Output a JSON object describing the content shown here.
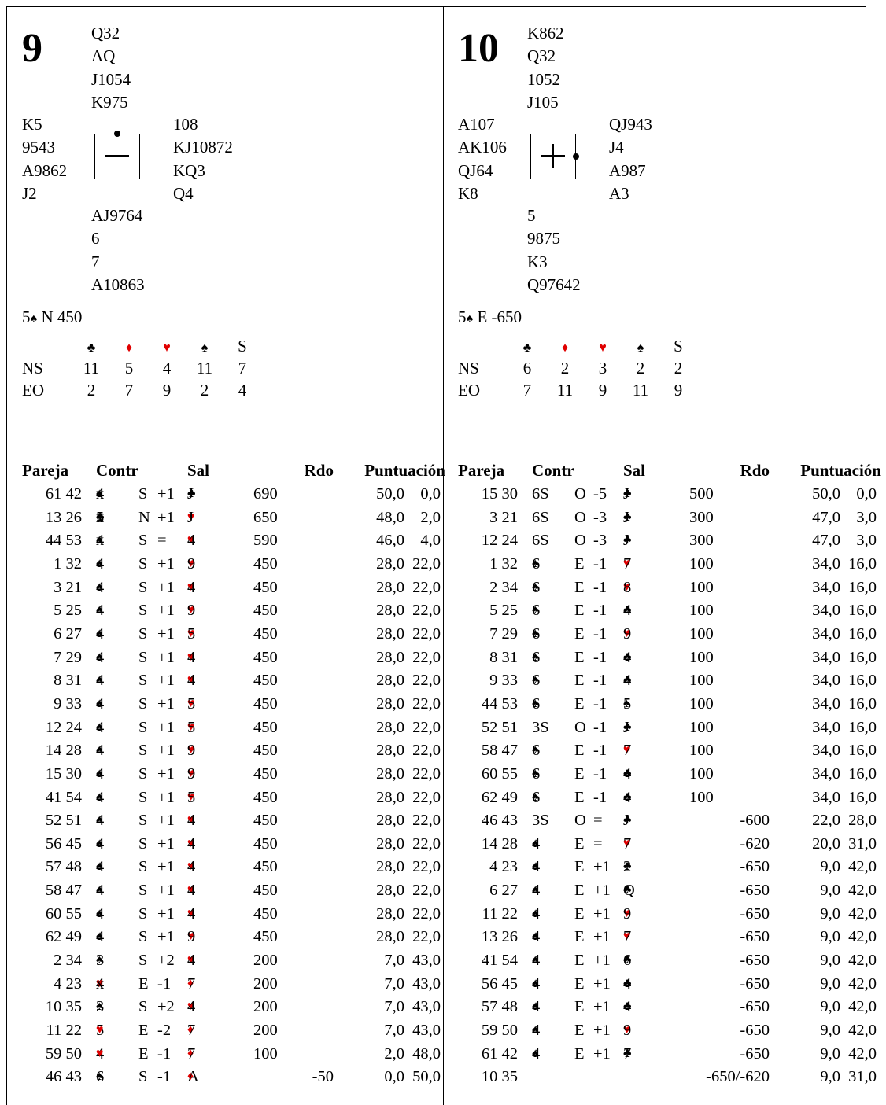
{
  "boards": [
    {
      "number": "9",
      "north": [
        "Q32",
        "AQ",
        "J1054",
        "K975"
      ],
      "west": [
        "K5",
        "9543",
        "A9862",
        "J2"
      ],
      "east": [
        "108",
        "KJ10872",
        "KQ3",
        "Q4"
      ],
      "south": [
        "AJ9764",
        "6",
        "7",
        "A10863"
      ],
      "compass_symbol": "—",
      "contract": {
        "level": "5",
        "suit": "♠",
        "rest": " N 450"
      },
      "dd": {
        "headers": [
          "♣",
          "♦",
          "♥",
          "♠",
          "S"
        ],
        "rows": [
          {
            "label": "NS",
            "values": [
              "11",
              "5",
              "4",
              "11",
              "7"
            ]
          },
          {
            "label": "EO",
            "values": [
              "2",
              "7",
              "9",
              "2",
              "4"
            ]
          }
        ]
      },
      "columns": {
        "pair": "Pareja",
        "contract": "Contr",
        "lead": "Sal",
        "result": "Rdo",
        "score": "Puntuación"
      },
      "results": [
        {
          "pair": "61 42",
          "level": "4",
          "suit": "♠",
          "dbl": "x",
          "decl": "S",
          "tricks": "+1",
          "lead_suit": "♣",
          "lead_card": "J",
          "rdo": "690",
          "rdo_ew": "",
          "ns": "50,0",
          "ew": "0,0"
        },
        {
          "pair": "13 26",
          "level": "5",
          "suit": "♣",
          "dbl": "x",
          "decl": "N",
          "tricks": "+1",
          "lead_suit": "♥",
          "lead_card": "J",
          "rdo": "650",
          "rdo_ew": "",
          "ns": "48,0",
          "ew": "2,0"
        },
        {
          "pair": "44 53",
          "level": "4",
          "suit": "♠",
          "dbl": "x",
          "decl": "S",
          "tricks": "=",
          "lead_suit": "♥",
          "lead_card": "4",
          "rdo": "590",
          "rdo_ew": "",
          "ns": "46,0",
          "ew": "4,0"
        },
        {
          "pair": "1 32",
          "level": "4",
          "suit": "♠",
          "dbl": "",
          "decl": "S",
          "tricks": "+1",
          "lead_suit": "♥",
          "lead_card": "9",
          "rdo": "450",
          "rdo_ew": "",
          "ns": "28,0",
          "ew": "22,0"
        },
        {
          "pair": "3 21",
          "level": "4",
          "suit": "♠",
          "dbl": "",
          "decl": "S",
          "tricks": "+1",
          "lead_suit": "♥",
          "lead_card": "4",
          "rdo": "450",
          "rdo_ew": "",
          "ns": "28,0",
          "ew": "22,0"
        },
        {
          "pair": "5 25",
          "level": "4",
          "suit": "♠",
          "dbl": "",
          "decl": "S",
          "tricks": "+1",
          "lead_suit": "♥",
          "lead_card": "9",
          "rdo": "450",
          "rdo_ew": "",
          "ns": "28,0",
          "ew": "22,0"
        },
        {
          "pair": "6 27",
          "level": "4",
          "suit": "♠",
          "dbl": "",
          "decl": "S",
          "tricks": "+1",
          "lead_suit": "♥",
          "lead_card": "5",
          "rdo": "450",
          "rdo_ew": "",
          "ns": "28,0",
          "ew": "22,0"
        },
        {
          "pair": "7 29",
          "level": "4",
          "suit": "♠",
          "dbl": "",
          "decl": "S",
          "tricks": "+1",
          "lead_suit": "♥",
          "lead_card": "4",
          "rdo": "450",
          "rdo_ew": "",
          "ns": "28,0",
          "ew": "22,0"
        },
        {
          "pair": "8 31",
          "level": "4",
          "suit": "♠",
          "dbl": "",
          "decl": "S",
          "tricks": "+1",
          "lead_suit": "♥",
          "lead_card": "4",
          "rdo": "450",
          "rdo_ew": "",
          "ns": "28,0",
          "ew": "22,0"
        },
        {
          "pair": "9 33",
          "level": "4",
          "suit": "♠",
          "dbl": "",
          "decl": "S",
          "tricks": "+1",
          "lead_suit": "♥",
          "lead_card": "5",
          "rdo": "450",
          "rdo_ew": "",
          "ns": "28,0",
          "ew": "22,0"
        },
        {
          "pair": "12 24",
          "level": "4",
          "suit": "♠",
          "dbl": "",
          "decl": "S",
          "tricks": "+1",
          "lead_suit": "♥",
          "lead_card": "5",
          "rdo": "450",
          "rdo_ew": "",
          "ns": "28,0",
          "ew": "22,0"
        },
        {
          "pair": "14 28",
          "level": "4",
          "suit": "♠",
          "dbl": "",
          "decl": "S",
          "tricks": "+1",
          "lead_suit": "♥",
          "lead_card": "9",
          "rdo": "450",
          "rdo_ew": "",
          "ns": "28,0",
          "ew": "22,0"
        },
        {
          "pair": "15 30",
          "level": "4",
          "suit": "♠",
          "dbl": "",
          "decl": "S",
          "tricks": "+1",
          "lead_suit": "♥",
          "lead_card": "9",
          "rdo": "450",
          "rdo_ew": "",
          "ns": "28,0",
          "ew": "22,0"
        },
        {
          "pair": "41 54",
          "level": "4",
          "suit": "♠",
          "dbl": "",
          "decl": "S",
          "tricks": "+1",
          "lead_suit": "♥",
          "lead_card": "5",
          "rdo": "450",
          "rdo_ew": "",
          "ns": "28,0",
          "ew": "22,0"
        },
        {
          "pair": "52 51",
          "level": "4",
          "suit": "♠",
          "dbl": "",
          "decl": "S",
          "tricks": "+1",
          "lead_suit": "♥",
          "lead_card": "4",
          "rdo": "450",
          "rdo_ew": "",
          "ns": "28,0",
          "ew": "22,0"
        },
        {
          "pair": "56 45",
          "level": "4",
          "suit": "♠",
          "dbl": "",
          "decl": "S",
          "tricks": "+1",
          "lead_suit": "♥",
          "lead_card": "4",
          "rdo": "450",
          "rdo_ew": "",
          "ns": "28,0",
          "ew": "22,0"
        },
        {
          "pair": "57 48",
          "level": "4",
          "suit": "♠",
          "dbl": "",
          "decl": "S",
          "tricks": "+1",
          "lead_suit": "♥",
          "lead_card": "4",
          "rdo": "450",
          "rdo_ew": "",
          "ns": "28,0",
          "ew": "22,0"
        },
        {
          "pair": "58 47",
          "level": "4",
          "suit": "♠",
          "dbl": "",
          "decl": "S",
          "tricks": "+1",
          "lead_suit": "♥",
          "lead_card": "4",
          "rdo": "450",
          "rdo_ew": "",
          "ns": "28,0",
          "ew": "22,0"
        },
        {
          "pair": "60 55",
          "level": "4",
          "suit": "♠",
          "dbl": "",
          "decl": "S",
          "tricks": "+1",
          "lead_suit": "♥",
          "lead_card": "4",
          "rdo": "450",
          "rdo_ew": "",
          "ns": "28,0",
          "ew": "22,0"
        },
        {
          "pair": "62 49",
          "level": "4",
          "suit": "♠",
          "dbl": "",
          "decl": "S",
          "tricks": "+1",
          "lead_suit": "♥",
          "lead_card": "9",
          "rdo": "450",
          "rdo_ew": "",
          "ns": "28,0",
          "ew": "22,0"
        },
        {
          "pair": "2 34",
          "level": "3",
          "suit": "♠",
          "dbl": "",
          "decl": "S",
          "tricks": "+2",
          "lead_suit": "♥",
          "lead_card": "4",
          "rdo": "200",
          "rdo_ew": "",
          "ns": "7,0",
          "ew": "43,0"
        },
        {
          "pair": "4 23",
          "level": "4",
          "suit": "♥",
          "dbl": "x",
          "decl": "E",
          "tricks": "-1",
          "lead_suit": "♦",
          "lead_card": "7",
          "rdo": "200",
          "rdo_ew": "",
          "ns": "7,0",
          "ew": "43,0"
        },
        {
          "pair": "10 35",
          "level": "3",
          "suit": "♠",
          "dbl": "",
          "decl": "S",
          "tricks": "+2",
          "lead_suit": "♥",
          "lead_card": "4",
          "rdo": "200",
          "rdo_ew": "",
          "ns": "7,0",
          "ew": "43,0"
        },
        {
          "pair": "11 22",
          "level": "5",
          "suit": "♥",
          "dbl": "",
          "decl": "E",
          "tricks": "-2",
          "lead_suit": "♦",
          "lead_card": "7",
          "rdo": "200",
          "rdo_ew": "",
          "ns": "7,0",
          "ew": "43,0"
        },
        {
          "pair": "59 50",
          "level": "4",
          "suit": "♥",
          "dbl": "",
          "decl": "E",
          "tricks": "-1",
          "lead_suit": "♦",
          "lead_card": "7",
          "rdo": "100",
          "rdo_ew": "",
          "ns": "2,0",
          "ew": "48,0"
        },
        {
          "pair": "46 43",
          "level": "6",
          "suit": "♠",
          "dbl": "",
          "decl": "S",
          "tricks": "-1",
          "lead_suit": "♦",
          "lead_card": "A",
          "rdo": "",
          "rdo_ew": "-50",
          "ns": "0,0",
          "ew": "50,0"
        }
      ]
    },
    {
      "number": "10",
      "north": [
        "K862",
        "Q32",
        "1052",
        "J105"
      ],
      "west": [
        "A107",
        "AK106",
        "QJ64",
        "K8"
      ],
      "east": [
        "QJ943",
        "J4",
        "A987",
        "A3"
      ],
      "south": [
        "5",
        "9875",
        "K3",
        "Q97642"
      ],
      "compass_symbol": "+",
      "contract": {
        "level": "5",
        "suit": "♠",
        "rest": " E -650"
      },
      "dd": {
        "headers": [
          "♣",
          "♦",
          "♥",
          "♠",
          "S"
        ],
        "rows": [
          {
            "label": "NS",
            "values": [
              "6",
              "2",
              "3",
              "2",
              "2"
            ]
          },
          {
            "label": "EO",
            "values": [
              "7",
              "11",
              "9",
              "11",
              "9"
            ]
          }
        ]
      },
      "columns": {
        "pair": "Pareja",
        "contract": "Contr",
        "lead": "Sal",
        "result": "Rdo",
        "score": "Puntuación"
      },
      "results": [
        {
          "pair": "15 30",
          "level": "6S",
          "suit": "",
          "dbl": "",
          "decl": "O",
          "tricks": "-5",
          "lead_suit": "♣",
          "lead_card": "J",
          "rdo": "500",
          "rdo_ew": "",
          "ns": "50,0",
          "ew": "0,0"
        },
        {
          "pair": "3 21",
          "level": "6S",
          "suit": "",
          "dbl": "",
          "decl": "O",
          "tricks": "-3",
          "lead_suit": "♣",
          "lead_card": "J",
          "rdo": "300",
          "rdo_ew": "",
          "ns": "47,0",
          "ew": "3,0"
        },
        {
          "pair": "12 24",
          "level": "6S",
          "suit": "",
          "dbl": "",
          "decl": "O",
          "tricks": "-3",
          "lead_suit": "♣",
          "lead_card": "J",
          "rdo": "300",
          "rdo_ew": "",
          "ns": "47,0",
          "ew": "3,0"
        },
        {
          "pair": "1 32",
          "level": "6",
          "suit": "♠",
          "dbl": "",
          "decl": "E",
          "tricks": "-1",
          "lead_suit": "♥",
          "lead_card": "7",
          "rdo": "100",
          "rdo_ew": "",
          "ns": "34,0",
          "ew": "16,0"
        },
        {
          "pair": "2 34",
          "level": "6",
          "suit": "♠",
          "dbl": "",
          "decl": "E",
          "tricks": "-1",
          "lead_suit": "♥",
          "lead_card": "8",
          "rdo": "100",
          "rdo_ew": "",
          "ns": "34,0",
          "ew": "16,0"
        },
        {
          "pair": "5 25",
          "level": "6",
          "suit": "♠",
          "dbl": "",
          "decl": "E",
          "tricks": "-1",
          "lead_suit": "♣",
          "lead_card": "4",
          "rdo": "100",
          "rdo_ew": "",
          "ns": "34,0",
          "ew": "16,0"
        },
        {
          "pair": "7 29",
          "level": "6",
          "suit": "♠",
          "dbl": "",
          "decl": "E",
          "tricks": "-1",
          "lead_suit": "♥",
          "lead_card": "9",
          "rdo": "100",
          "rdo_ew": "",
          "ns": "34,0",
          "ew": "16,0"
        },
        {
          "pair": "8 31",
          "level": "6",
          "suit": "♠",
          "dbl": "",
          "decl": "E",
          "tricks": "-1",
          "lead_suit": "♣",
          "lead_card": "4",
          "rdo": "100",
          "rdo_ew": "",
          "ns": "34,0",
          "ew": "16,0"
        },
        {
          "pair": "9 33",
          "level": "6",
          "suit": "♠",
          "dbl": "",
          "decl": "E",
          "tricks": "-1",
          "lead_suit": "♣",
          "lead_card": "4",
          "rdo": "100",
          "rdo_ew": "",
          "ns": "34,0",
          "ew": "16,0"
        },
        {
          "pair": "44 53",
          "level": "6",
          "suit": "♠",
          "dbl": "",
          "decl": "E",
          "tricks": "-1",
          "lead_suit": "♠",
          "lead_card": "5",
          "rdo": "100",
          "rdo_ew": "",
          "ns": "34,0",
          "ew": "16,0"
        },
        {
          "pair": "52 51",
          "level": "3S",
          "suit": "",
          "dbl": "",
          "decl": "O",
          "tricks": "-1",
          "lead_suit": "♣",
          "lead_card": "J",
          "rdo": "100",
          "rdo_ew": "",
          "ns": "34,0",
          "ew": "16,0"
        },
        {
          "pair": "58 47",
          "level": "6",
          "suit": "♠",
          "dbl": "",
          "decl": "E",
          "tricks": "-1",
          "lead_suit": "♥",
          "lead_card": "7",
          "rdo": "100",
          "rdo_ew": "",
          "ns": "34,0",
          "ew": "16,0"
        },
        {
          "pair": "60 55",
          "level": "6",
          "suit": "♠",
          "dbl": "",
          "decl": "E",
          "tricks": "-1",
          "lead_suit": "♣",
          "lead_card": "4",
          "rdo": "100",
          "rdo_ew": "",
          "ns": "34,0",
          "ew": "16,0"
        },
        {
          "pair": "62 49",
          "level": "6",
          "suit": "♠",
          "dbl": "",
          "decl": "E",
          "tricks": "-1",
          "lead_suit": "♣",
          "lead_card": "4",
          "rdo": "100",
          "rdo_ew": "",
          "ns": "34,0",
          "ew": "16,0"
        },
        {
          "pair": "46 43",
          "level": "3S",
          "suit": "",
          "dbl": "",
          "decl": "O",
          "tricks": "=",
          "lead_suit": "♣",
          "lead_card": "J",
          "rdo": "",
          "rdo_ew": "-600",
          "ns": "22,0",
          "ew": "28,0"
        },
        {
          "pair": "14 28",
          "level": "4",
          "suit": "♠",
          "dbl": "",
          "decl": "E",
          "tricks": "=",
          "lead_suit": "♥",
          "lead_card": "7",
          "rdo": "",
          "rdo_ew": "-620",
          "ns": "20,0",
          "ew": "31,0"
        },
        {
          "pair": "4 23",
          "level": "4",
          "suit": "♠",
          "dbl": "",
          "decl": "E",
          "tricks": "+1",
          "lead_suit": "♣",
          "lead_card": "2",
          "rdo": "",
          "rdo_ew": "-650",
          "ns": "9,0",
          "ew": "42,0"
        },
        {
          "pair": "6 27",
          "level": "4",
          "suit": "♠",
          "dbl": "",
          "decl": "E",
          "tricks": "+1",
          "lead_suit": "♣",
          "lead_card": "Q",
          "rdo": "",
          "rdo_ew": "-650",
          "ns": "9,0",
          "ew": "42,0"
        },
        {
          "pair": "11 22",
          "level": "4",
          "suit": "♠",
          "dbl": "",
          "decl": "E",
          "tricks": "+1",
          "lead_suit": "♥",
          "lead_card": "9",
          "rdo": "",
          "rdo_ew": "-650",
          "ns": "9,0",
          "ew": "42,0"
        },
        {
          "pair": "13 26",
          "level": "4",
          "suit": "♠",
          "dbl": "",
          "decl": "E",
          "tricks": "+1",
          "lead_suit": "♥",
          "lead_card": "7",
          "rdo": "",
          "rdo_ew": "-650",
          "ns": "9,0",
          "ew": "42,0"
        },
        {
          "pair": "41 54",
          "level": "4",
          "suit": "♠",
          "dbl": "",
          "decl": "E",
          "tricks": "+1",
          "lead_suit": "♣",
          "lead_card": "6",
          "rdo": "",
          "rdo_ew": "-650",
          "ns": "9,0",
          "ew": "42,0"
        },
        {
          "pair": "56 45",
          "level": "4",
          "suit": "♠",
          "dbl": "",
          "decl": "E",
          "tricks": "+1",
          "lead_suit": "♣",
          "lead_card": "4",
          "rdo": "",
          "rdo_ew": "-650",
          "ns": "9,0",
          "ew": "42,0"
        },
        {
          "pair": "57 48",
          "level": "4",
          "suit": "♠",
          "dbl": "",
          "decl": "E",
          "tricks": "+1",
          "lead_suit": "♣",
          "lead_card": "4",
          "rdo": "",
          "rdo_ew": "-650",
          "ns": "9,0",
          "ew": "42,0"
        },
        {
          "pair": "59 50",
          "level": "4",
          "suit": "♠",
          "dbl": "",
          "decl": "E",
          "tricks": "+1",
          "lead_suit": "♥",
          "lead_card": "9",
          "rdo": "",
          "rdo_ew": "-650",
          "ns": "9,0",
          "ew": "42,0"
        },
        {
          "pair": "61 42",
          "level": "4",
          "suit": "♠",
          "dbl": "",
          "decl": "E",
          "tricks": "+1",
          "lead_suit": "♣",
          "lead_card": "7",
          "rdo": "",
          "rdo_ew": "-650",
          "ns": "9,0",
          "ew": "42,0"
        },
        {
          "pair": "10 35",
          "level": "",
          "suit": "",
          "dbl": "",
          "decl": "",
          "tricks": "",
          "lead_suit": "",
          "lead_card": "",
          "rdo": "",
          "rdo_ew": "-650/-620",
          "ns": "9,0",
          "ew": "31,0"
        }
      ]
    }
  ],
  "colors": {
    "red_suit": "#e00000",
    "black_suit": "#000000"
  }
}
